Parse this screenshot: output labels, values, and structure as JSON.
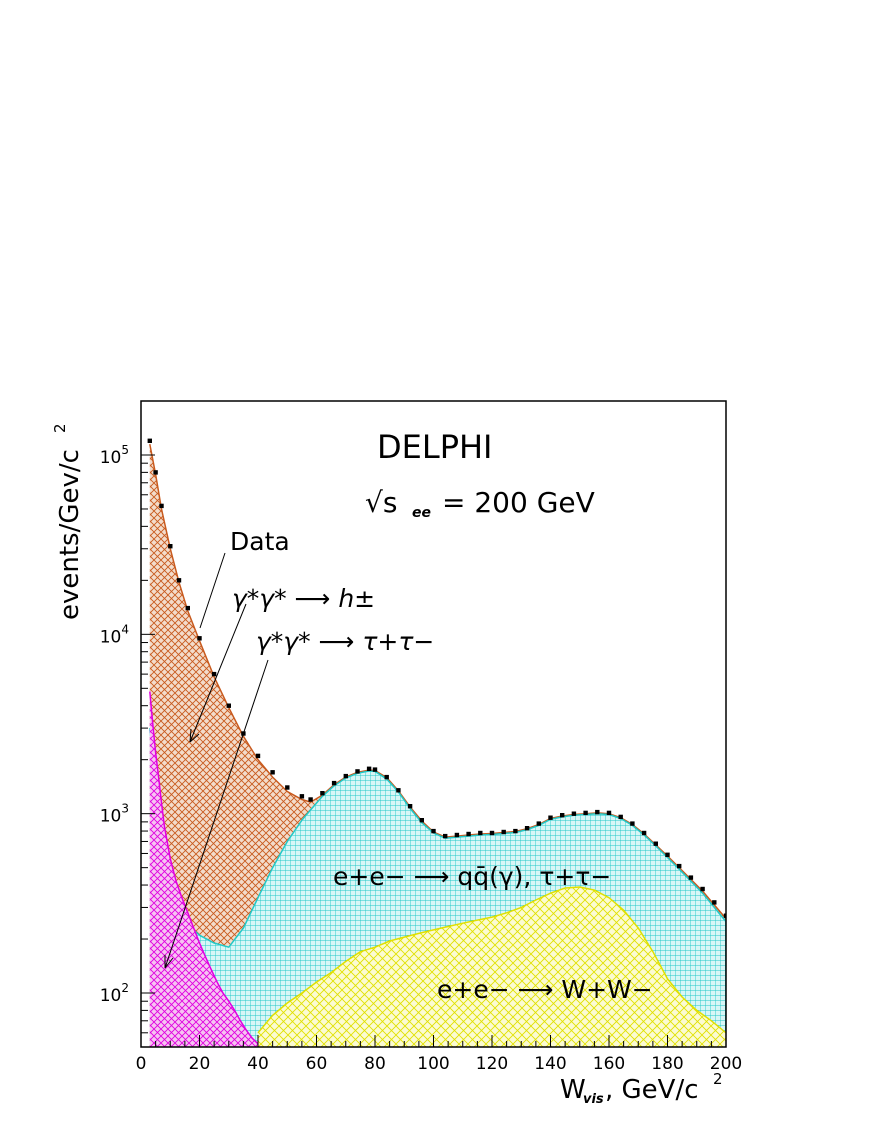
{
  "chart_data": {
    "type": "area",
    "title": "DELPHI",
    "subtitle": "√s",
    "subtitle_sub": "ee",
    "subtitle_rest": "= 200 GeV",
    "xlabel": "W",
    "xlabel_sub": "vis",
    "xlabel_rest": ", GeV/c",
    "xlabel_sup": "2",
    "ylabel": "events/Gev/c",
    "ylabel_sup": "2",
    "xlim": [
      0,
      200
    ],
    "ylim": [
      50,
      200000
    ],
    "yscale": "log",
    "grid": false,
    "xticks": [
      "0",
      "20",
      "40",
      "60",
      "80",
      "100",
      "120",
      "140",
      "160",
      "180",
      "200"
    ],
    "yticks": [
      {
        "base": "10",
        "exp": "2",
        "value": 100
      },
      {
        "base": "10",
        "exp": "3",
        "value": 1000
      },
      {
        "base": "10",
        "exp": "4",
        "value": 10000
      },
      {
        "base": "10",
        "exp": "5",
        "value": 100000
      }
    ],
    "annotations": {
      "data": "Data",
      "hadrons": "γ*γ* ⟶ h±",
      "taus": "γ*γ* ⟶ τ+τ−",
      "qq": "e+e− ⟶ qq̄(γ), τ+τ−",
      "ww": "e+e− ⟶ W+W−"
    },
    "colors": {
      "hadrons": "#c85a1e",
      "hadrons_fill": "#f3dccb",
      "qq": "#20c8c8",
      "qq_fill": "#c9f2f2",
      "ww": "#e0e000",
      "ww_fill": "#fbfbc8",
      "taus": "#e000e0",
      "taus_fill": "#f6c4f2",
      "data": "#000000"
    },
    "series": [
      {
        "name": "Data",
        "x": [
          3,
          5,
          7,
          10,
          13,
          16,
          20,
          25,
          30,
          35,
          40,
          45,
          50,
          55,
          58,
          62,
          66,
          70,
          74,
          78,
          80,
          84,
          88,
          92,
          96,
          100,
          104,
          108,
          112,
          116,
          120,
          124,
          128,
          132,
          136,
          140,
          144,
          148,
          152,
          156,
          160,
          164,
          168,
          172,
          176,
          180,
          184,
          188,
          192,
          196,
          200
        ],
        "y": [
          120000,
          80000,
          52000,
          31000,
          20000,
          14000,
          9500,
          6000,
          4000,
          2800,
          2100,
          1700,
          1400,
          1250,
          1200,
          1300,
          1480,
          1620,
          1720,
          1780,
          1760,
          1600,
          1350,
          1100,
          920,
          800,
          750,
          760,
          770,
          780,
          780,
          790,
          800,
          830,
          880,
          950,
          980,
          1000,
          1010,
          1020,
          1010,
          960,
          880,
          780,
          680,
          590,
          510,
          440,
          380,
          320,
          270
        ]
      },
      {
        "name": "γ*γ* ⟶ h±",
        "x": [
          3,
          5,
          7,
          10,
          13,
          16,
          20,
          25,
          30,
          35,
          40,
          45,
          50,
          55,
          58,
          62,
          66,
          70,
          74,
          78,
          80,
          84,
          88,
          92,
          96,
          100,
          104,
          108,
          112,
          116,
          120,
          124,
          128,
          132,
          136,
          140,
          144,
          148,
          152,
          156,
          160,
          164,
          168,
          172,
          176,
          180,
          184,
          188,
          192,
          196,
          200
        ],
        "y": [
          115000,
          78000,
          50000,
          30000,
          19500,
          13500,
          9200,
          5800,
          3900,
          2700,
          2000,
          1600,
          1330,
          1200,
          1160,
          1270,
          1450,
          1600,
          1700,
          1750,
          1740,
          1590,
          1340,
          1090,
          910,
          790,
          740,
          750,
          760,
          770,
          775,
          785,
          795,
          825,
          870,
          940,
          970,
          990,
          1000,
          1010,
          1000,
          950,
          870,
          770,
          670,
          580,
          500,
          430,
          370,
          310,
          260
        ]
      },
      {
        "name": "e+e− ⟶ qq̄(γ), τ+τ−",
        "x": [
          3,
          5,
          7,
          10,
          13,
          16,
          20,
          25,
          30,
          35,
          40,
          45,
          50,
          55,
          58,
          62,
          66,
          70,
          74,
          78,
          80,
          84,
          88,
          92,
          96,
          100,
          104,
          108,
          112,
          116,
          120,
          124,
          128,
          132,
          136,
          140,
          144,
          148,
          152,
          156,
          160,
          164,
          168,
          172,
          176,
          180,
          184,
          188,
          192,
          196,
          200
        ],
        "y": [
          3000,
          1500,
          800,
          420,
          300,
          240,
          210,
          190,
          180,
          230,
          340,
          500,
          700,
          920,
          1050,
          1250,
          1430,
          1580,
          1680,
          1730,
          1720,
          1560,
          1320,
          1070,
          890,
          780,
          730,
          740,
          750,
          760,
          765,
          775,
          785,
          815,
          860,
          930,
          960,
          980,
          990,
          1000,
          990,
          940,
          860,
          760,
          660,
          570,
          490,
          420,
          360,
          300,
          250
        ]
      },
      {
        "name": "e+e− ⟶ W+W−",
        "x": [
          40,
          45,
          50,
          55,
          60,
          65,
          70,
          75,
          80,
          85,
          90,
          95,
          100,
          105,
          110,
          115,
          120,
          125,
          130,
          135,
          140,
          145,
          150,
          155,
          160,
          165,
          170,
          175,
          180,
          185,
          190,
          195,
          200
        ],
        "y": [
          60,
          75,
          88,
          100,
          115,
          130,
          150,
          170,
          180,
          195,
          205,
          215,
          225,
          235,
          245,
          255,
          265,
          280,
          300,
          330,
          360,
          385,
          390,
          375,
          340,
          290,
          230,
          170,
          120,
          95,
          80,
          70,
          60
        ]
      },
      {
        "name": "γ*γ* ⟶ τ+τ−",
        "x": [
          3,
          4,
          5,
          6,
          7,
          8,
          10,
          12,
          14,
          16,
          18,
          20,
          22,
          24,
          26,
          28,
          30,
          32,
          34,
          36,
          38,
          40
        ],
        "y": [
          4800,
          3200,
          2200,
          1600,
          1150,
          850,
          560,
          420,
          340,
          280,
          230,
          190,
          160,
          135,
          115,
          100,
          90,
          80,
          70,
          62,
          56,
          52
        ]
      }
    ]
  }
}
